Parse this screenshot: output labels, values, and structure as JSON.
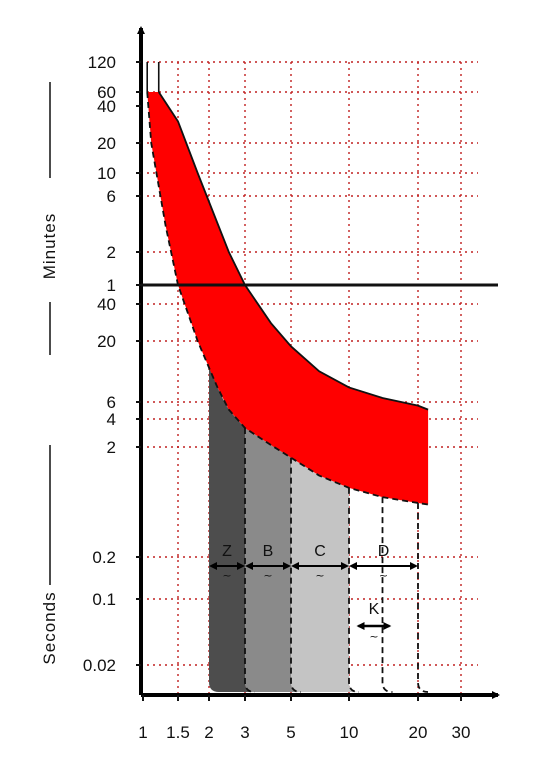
{
  "chart_data": {
    "type": "area",
    "xscale": "log",
    "yscale": "log",
    "grid": true,
    "colors": {
      "overload_band": "#ff0000",
      "zone_z": "#4d4d4d",
      "zone_b": "#8a8a8a",
      "zone_c": "#c4c4c4",
      "grid": "#c02020",
      "axis": "#000000"
    },
    "x_ticks": [
      "1",
      "1.5",
      "2",
      "3",
      "5",
      "10",
      "20",
      "30"
    ],
    "x_tick_values": [
      1,
      1.5,
      2,
      3,
      5,
      10,
      20,
      30
    ],
    "xlim": [
      1,
      30
    ],
    "y_ticks_minutes": [
      "120",
      "60",
      "40",
      "20",
      "10",
      "6",
      "2",
      "1"
    ],
    "y_tick_minutes_values": [
      120,
      60,
      40,
      20,
      10,
      6,
      2,
      1
    ],
    "y_ticks_seconds": [
      "40",
      "20",
      "6",
      "4",
      "2",
      "0.2",
      "0.1",
      "0.02"
    ],
    "y_tick_seconds_values": [
      40,
      20,
      6,
      4,
      2,
      0.2,
      0.1,
      0.02
    ],
    "y_label_minutes": "Minutes",
    "y_label_seconds": "Seconds",
    "overload_band": {
      "upper": {
        "x": [
          1.2,
          1.5,
          1.8,
          2.5,
          3,
          4,
          5,
          7,
          10,
          14,
          20,
          22
        ],
        "t_seconds": [
          3600,
          1800,
          600,
          120,
          60,
          28,
          18,
          11,
          8,
          6.5,
          5.5,
          5
        ]
      },
      "lower": {
        "x": [
          1.05,
          1.1,
          1.3,
          1.5,
          1.8,
          2.2,
          2.5,
          3,
          4,
          5,
          7,
          10,
          14,
          20,
          22
        ],
        "t_seconds": [
          3600,
          1200,
          200,
          60,
          20,
          8,
          5,
          3.2,
          2.1,
          1.6,
          1.1,
          0.85,
          0.7,
          0.62,
          0.6
        ]
      }
    },
    "trip_zones": [
      {
        "label": "Z",
        "from": 2,
        "to": 3
      },
      {
        "label": "B",
        "from": 3,
        "to": 5
      },
      {
        "label": "C",
        "from": 5,
        "to": 10
      },
      {
        "label": "D",
        "from": 10,
        "to": 20
      },
      {
        "label": "K",
        "from": 8,
        "to": 14
      }
    ],
    "tilde": "~"
  }
}
